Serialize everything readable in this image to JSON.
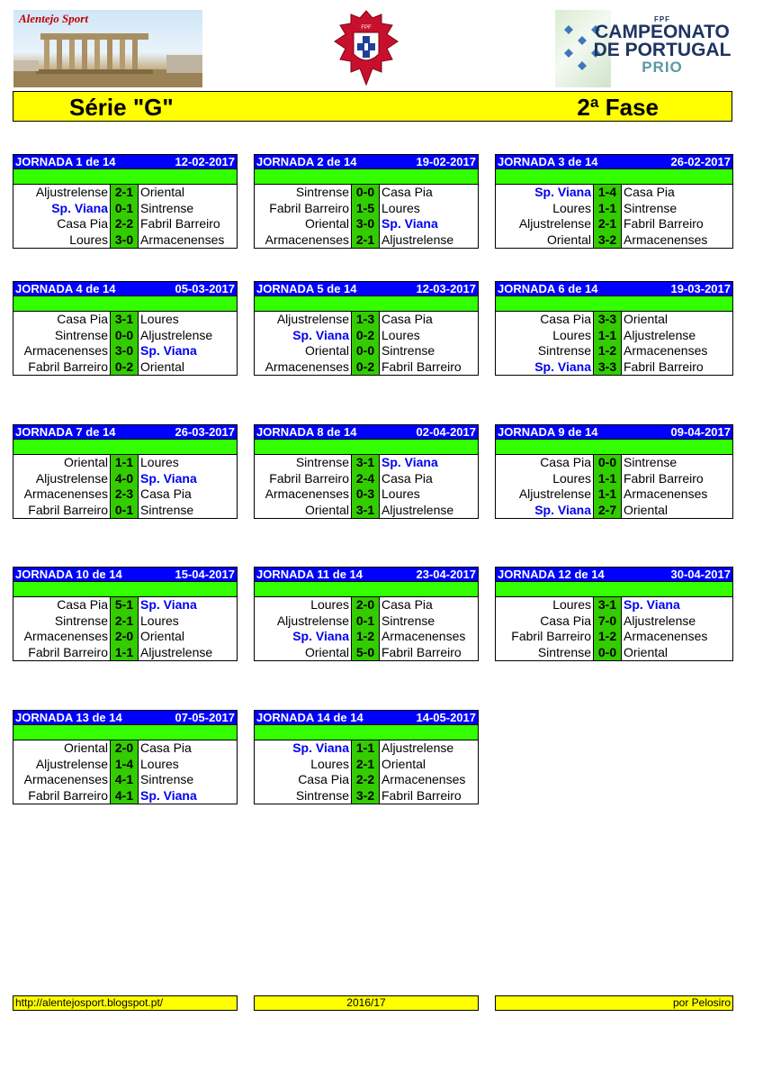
{
  "header": {
    "brand_left": "Alentejo Sport",
    "title_left": "Série \"G\"",
    "title_right": "2ª Fase",
    "logo_right": {
      "fpf": "FPF",
      "line1": "CAMPEONATO",
      "line2": "DE PORTUGAL",
      "line3": "PRIO"
    },
    "highlight_team": "Sp. Viana",
    "colors": {
      "head_blue": "#0000ff",
      "green": "#33ff00",
      "score_green": "#33cc00",
      "yellow": "#ffff00"
    }
  },
  "jornadas": [
    {
      "label": "JORNADA 1 de 14",
      "date": "12-02-2017",
      "games": [
        {
          "home": "Aljustrelense",
          "score": "2-1",
          "away": "Oriental"
        },
        {
          "home": "Sp. Viana",
          "score": "0-1",
          "away": "Sintrense"
        },
        {
          "home": "Casa Pia",
          "score": "2-2",
          "away": "Fabril Barreiro"
        },
        {
          "home": "Loures",
          "score": "3-0",
          "away": "Armacenenses"
        }
      ]
    },
    {
      "label": "JORNADA 2 de 14",
      "date": "19-02-2017",
      "games": [
        {
          "home": "Sintrense",
          "score": "0-0",
          "away": "Casa Pia"
        },
        {
          "home": "Fabril Barreiro",
          "score": "1-5",
          "away": "Loures"
        },
        {
          "home": "Oriental",
          "score": "3-0",
          "away": "Sp. Viana"
        },
        {
          "home": "Armacenenses",
          "score": "2-1",
          "away": "Aljustrelense"
        }
      ]
    },
    {
      "label": "JORNADA 3 de 14",
      "date": "26-02-2017",
      "games": [
        {
          "home": "Sp. Viana",
          "score": "1-4",
          "away": "Casa Pia"
        },
        {
          "home": "Loures",
          "score": "1-1",
          "away": "Sintrense"
        },
        {
          "home": "Aljustrelense",
          "score": "2-1",
          "away": "Fabril Barreiro"
        },
        {
          "home": "Oriental",
          "score": "3-2",
          "away": "Armacenenses"
        }
      ]
    },
    {
      "label": "JORNADA 4 de 14",
      "date": "05-03-2017",
      "games": [
        {
          "home": "Casa Pia",
          "score": "3-1",
          "away": "Loures"
        },
        {
          "home": "Sintrense",
          "score": "0-0",
          "away": "Aljustrelense"
        },
        {
          "home": "Armacenenses",
          "score": "3-0",
          "away": "Sp. Viana"
        },
        {
          "home": "Fabril Barreiro",
          "score": "0-2",
          "away": "Oriental"
        }
      ]
    },
    {
      "label": "JORNADA 5 de 14",
      "date": "12-03-2017",
      "games": [
        {
          "home": "Aljustrelense",
          "score": "1-3",
          "away": "Casa Pia"
        },
        {
          "home": "Sp. Viana",
          "score": "0-2",
          "away": "Loures"
        },
        {
          "home": "Oriental",
          "score": "0-0",
          "away": "Sintrense"
        },
        {
          "home": "Armacenenses",
          "score": "0-2",
          "away": "Fabril Barreiro"
        }
      ]
    },
    {
      "label": "JORNADA 6 de 14",
      "date": "19-03-2017",
      "games": [
        {
          "home": "Casa Pia",
          "score": "3-3",
          "away": "Oriental"
        },
        {
          "home": "Loures",
          "score": "1-1",
          "away": "Aljustrelense"
        },
        {
          "home": "Sintrense",
          "score": "1-2",
          "away": "Armacenenses"
        },
        {
          "home": "Sp. Viana",
          "score": "3-3",
          "away": "Fabril Barreiro"
        }
      ]
    },
    {
      "label": "JORNADA 7 de 14",
      "date": "26-03-2017",
      "games": [
        {
          "home": "Oriental",
          "score": "1-1",
          "away": "Loures"
        },
        {
          "home": "Aljustrelense",
          "score": "4-0",
          "away": "Sp. Viana"
        },
        {
          "home": "Armacenenses",
          "score": "2-3",
          "away": "Casa Pia"
        },
        {
          "home": "Fabril Barreiro",
          "score": "0-1",
          "away": "Sintrense"
        }
      ]
    },
    {
      "label": "JORNADA 8 de 14",
      "date": "02-04-2017",
      "games": [
        {
          "home": "Sintrense",
          "score": "3-1",
          "away": "Sp. Viana"
        },
        {
          "home": "Fabril Barreiro",
          "score": "2-4",
          "away": "Casa Pia"
        },
        {
          "home": "Armacenenses",
          "score": "0-3",
          "away": "Loures"
        },
        {
          "home": "Oriental",
          "score": "3-1",
          "away": "Aljustrelense"
        }
      ]
    },
    {
      "label": "JORNADA 9 de 14",
      "date": "09-04-2017",
      "games": [
        {
          "home": "Casa Pia",
          "score": "0-0",
          "away": "Sintrense"
        },
        {
          "home": "Loures",
          "score": "1-1",
          "away": "Fabril Barreiro"
        },
        {
          "home": "Aljustrelense",
          "score": "1-1",
          "away": "Armacenenses"
        },
        {
          "home": "Sp. Viana",
          "score": "2-7",
          "away": "Oriental"
        }
      ]
    },
    {
      "label": "JORNADA 10 de 14",
      "date": "15-04-2017",
      "games": [
        {
          "home": "Casa Pia",
          "score": "5-1",
          "away": "Sp. Viana"
        },
        {
          "home": "Sintrense",
          "score": "2-1",
          "away": "Loures"
        },
        {
          "home": "Armacenenses",
          "score": "2-0",
          "away": "Oriental"
        },
        {
          "home": "Fabril Barreiro",
          "score": "1-1",
          "away": "Aljustrelense"
        }
      ]
    },
    {
      "label": "JORNADA 11 de 14",
      "date": "23-04-2017",
      "games": [
        {
          "home": "Loures",
          "score": "2-0",
          "away": "Casa Pia"
        },
        {
          "home": "Aljustrelense",
          "score": "0-1",
          "away": "Sintrense"
        },
        {
          "home": "Sp. Viana",
          "score": "1-2",
          "away": "Armacenenses"
        },
        {
          "home": "Oriental",
          "score": "5-0",
          "away": "Fabril Barreiro"
        }
      ]
    },
    {
      "label": "JORNADA 12 de 14",
      "date": "30-04-2017",
      "games": [
        {
          "home": "Loures",
          "score": "3-1",
          "away": "Sp. Viana"
        },
        {
          "home": "Casa Pia",
          "score": "7-0",
          "away": "Aljustrelense"
        },
        {
          "home": "Fabril Barreiro",
          "score": "1-2",
          "away": "Armacenenses"
        },
        {
          "home": "Sintrense",
          "score": "0-0",
          "away": "Oriental"
        }
      ]
    },
    {
      "label": "JORNADA 13 de 14",
      "date": "07-05-2017",
      "games": [
        {
          "home": "Oriental",
          "score": "2-0",
          "away": "Casa Pia"
        },
        {
          "home": "Aljustrelense",
          "score": "1-4",
          "away": "Loures"
        },
        {
          "home": "Armacenenses",
          "score": "4-1",
          "away": "Sintrense"
        },
        {
          "home": "Fabril Barreiro",
          "score": "4-1",
          "away": "Sp. Viana"
        }
      ]
    },
    {
      "label": "JORNADA 14 de 14",
      "date": "14-05-2017",
      "games": [
        {
          "home": "Sp. Viana",
          "score": "1-1",
          "away": "Aljustrelense"
        },
        {
          "home": "Loures",
          "score": "2-1",
          "away": "Oriental"
        },
        {
          "home": "Casa Pia",
          "score": "2-2",
          "away": "Armacenenses"
        },
        {
          "home": "Sintrense",
          "score": "3-2",
          "away": "Fabril Barreiro"
        }
      ]
    }
  ],
  "footer": {
    "link": "http://alentejosport.blogspot.pt/",
    "season": "2016/17",
    "author": "por Pelosiro"
  }
}
